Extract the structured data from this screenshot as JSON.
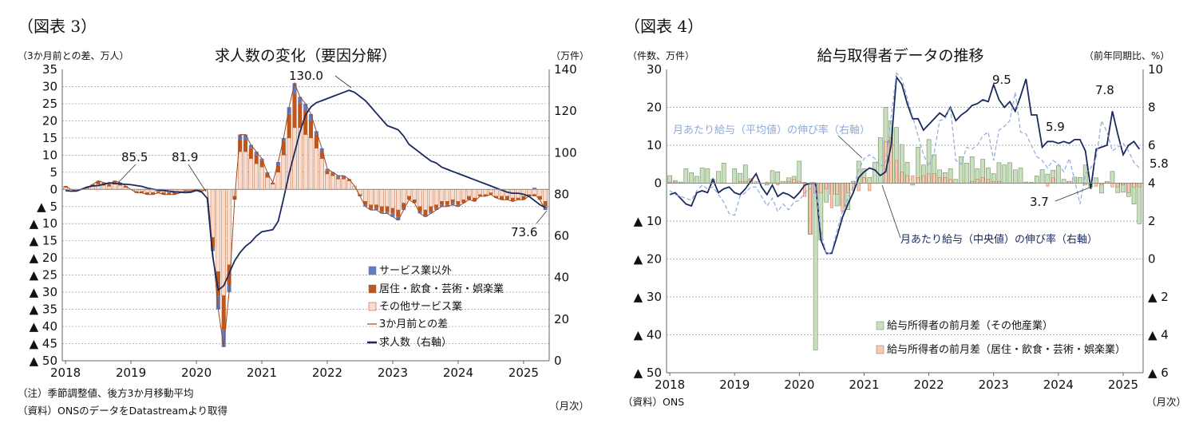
{
  "left": {
    "figure_label": "（図表 3）",
    "chart_data": {
      "type": "bar+line",
      "title": "求人数の変化（要因分解）",
      "ylabel_left": "（3か月前との差、万人）",
      "ylabel_right": "（万件）",
      "xlabel": "（月次）",
      "x_start": "2018-01",
      "x_end": "2025-05",
      "x_frequency": "monthly",
      "x_tick_labels": [
        "2018",
        "2019",
        "2020",
        "2021",
        "2022",
        "2023",
        "2024",
        "2025"
      ],
      "ylim_left": [
        -50,
        35
      ],
      "ylim_right": [
        0,
        140
      ],
      "y_ticks_left": [
        "35",
        "30",
        "25",
        "20",
        "15",
        "10",
        "5",
        "0",
        "▲ 5",
        "▲ 10",
        "▲ 15",
        "▲ 20",
        "▲ 25",
        "▲ 30",
        "▲ 35",
        "▲ 40",
        "▲ 45",
        "▲ 50"
      ],
      "y_ticks_right": [
        "140",
        "120",
        "100",
        "80",
        "60",
        "40",
        "20",
        "0"
      ],
      "grid": true,
      "legend_position": "bottom-right",
      "series": [
        {
          "name": "サービス業以外",
          "kind": "stacked-bar",
          "color": "#5b7fc4",
          "values": [
            0.1,
            0,
            0,
            0,
            0,
            0.1,
            0.2,
            0.2,
            0.1,
            0.2,
            0.2,
            0.1,
            0,
            -0.1,
            -0.1,
            -0.1,
            -0.1,
            -0.1,
            -0.1,
            -0.1,
            -0.1,
            -0.1,
            0,
            0,
            0,
            0,
            0,
            -1,
            -4,
            -5,
            -2,
            0,
            1.5,
            1.5,
            1,
            1,
            0.5,
            0.5,
            0,
            1,
            1,
            2,
            3,
            2,
            2,
            2,
            1,
            1,
            0.5,
            0.5,
            0.5,
            0.5,
            0,
            0,
            0,
            -0.5,
            -0.5,
            -0.5,
            -0.5,
            -0.5,
            -1,
            -1,
            -0.5,
            0,
            0,
            -0.5,
            -0.5,
            -0.5,
            -0.5,
            -0.5,
            -0.5,
            -0.5,
            -0.5,
            0,
            0,
            0,
            0,
            0,
            0,
            0,
            0,
            0,
            0,
            0,
            0,
            0,
            0.5,
            0,
            -1
          ]
        },
        {
          "name": "居住・飲食・芸術・娯楽業",
          "kind": "stacked-bar",
          "color": "#c0561c",
          "values": [
            0.3,
            0,
            -0.2,
            0,
            0.2,
            0.5,
            0.8,
            0.6,
            0.5,
            0.8,
            0.6,
            0.3,
            0,
            -0.3,
            -0.3,
            -0.5,
            -0.5,
            -0.3,
            -0.5,
            -0.5,
            -0.5,
            -0.3,
            -0.2,
            -0.2,
            0,
            -0.2,
            0,
            -3,
            -7,
            -10,
            -6,
            -1,
            3.5,
            3.5,
            3,
            2.5,
            2,
            1,
            0.5,
            2,
            4,
            7,
            10,
            7,
            7,
            5,
            4,
            2,
            1,
            0.5,
            0.5,
            0.5,
            0.5,
            0,
            -0.5,
            -1,
            -1,
            -1,
            -1.5,
            -1.5,
            -1.5,
            -2,
            -1.5,
            -1,
            -1,
            -1.5,
            -1.5,
            -1.5,
            -1,
            -1,
            -1,
            -1,
            -1,
            -1,
            -1,
            -1,
            -0.5,
            -0.5,
            -0.5,
            -0.5,
            -1,
            -1,
            -1,
            -0.5,
            -1,
            -0.5,
            -0.5,
            -1,
            -1.5
          ]
        },
        {
          "name": "その他サービス業",
          "kind": "stacked-bar",
          "color": "#fbdccb",
          "values": [
            0.6,
            0,
            -0.3,
            0,
            0.3,
            0.9,
            1.5,
            1.2,
            0.9,
            1.5,
            1.2,
            0.6,
            0,
            -0.6,
            -0.6,
            -0.9,
            -0.9,
            -0.6,
            -0.9,
            -0.9,
            -0.9,
            -0.6,
            -0.3,
            -0.3,
            0,
            -0.3,
            0,
            -14,
            -24,
            -31,
            -22,
            -2,
            11,
            11,
            9,
            7.5,
            6.5,
            3.5,
            1.5,
            5,
            10,
            15,
            18,
            18,
            16,
            15,
            12,
            9,
            4.5,
            4,
            3,
            3,
            2.5,
            1,
            -1.5,
            -3.5,
            -4.5,
            -4.5,
            -5,
            -5,
            -5.5,
            -6,
            -4,
            -2,
            -3,
            -5,
            -6,
            -5,
            -4.5,
            -3.5,
            -3.5,
            -3,
            -3.5,
            -3,
            -2,
            -2.5,
            -1.5,
            -1.5,
            -1,
            -2,
            -2,
            -2,
            -2.5,
            -2.5,
            -2,
            -1.5,
            -1.5,
            -2,
            -3.5
          ]
        },
        {
          "name": "3か月前との差",
          "kind": "line",
          "axis": "left",
          "color": "#a0461c",
          "values": [
            1,
            0,
            -0.5,
            0,
            0.5,
            1.5,
            2.5,
            2,
            1.5,
            2.5,
            2,
            1,
            0,
            -1,
            -1,
            -1.5,
            -1.5,
            -1,
            -1.5,
            -1.5,
            -1.5,
            -1,
            -0.5,
            -0.5,
            0,
            -0.5,
            0,
            -18,
            -35,
            -46,
            -30,
            -3,
            16,
            16,
            13,
            11,
            9,
            5,
            2,
            8,
            15,
            24,
            31,
            27,
            25,
            22,
            17,
            12,
            6,
            5,
            4,
            4,
            3,
            1,
            -2,
            -5,
            -6,
            -6,
            -7,
            -7,
            -8,
            -9,
            -6,
            -3,
            -4,
            -7,
            -8,
            -7,
            -6,
            -5,
            -5,
            -4.5,
            -5,
            -4,
            -3,
            -3.5,
            -2,
            -2,
            -1.5,
            -2.5,
            -3,
            -3,
            -3.5,
            -3,
            -3,
            -2,
            -1.5,
            -3,
            -6
          ]
        },
        {
          "name": "求人数（右軸）",
          "kind": "line",
          "axis": "right",
          "color": "#1a2a5e",
          "values": [
            81.8,
            81.5,
            81.6,
            82.5,
            83.5,
            84,
            84.2,
            84.8,
            85.5,
            85.2,
            85,
            84.8,
            84.6,
            84.2,
            83.8,
            83,
            82.5,
            82,
            81.8,
            81.5,
            81.2,
            81,
            80.8,
            81,
            81.9,
            81,
            78,
            50,
            34,
            36,
            42,
            48,
            52,
            55,
            57,
            60,
            62,
            62.5,
            63,
            67,
            78,
            90,
            100,
            110,
            118,
            122,
            124,
            125,
            126,
            127,
            128,
            129,
            130,
            129,
            127,
            125,
            122,
            119,
            116,
            113,
            112,
            111,
            108,
            104,
            102,
            100,
            98,
            96,
            95,
            93,
            92,
            91,
            90,
            89,
            88,
            87,
            86,
            85,
            84,
            83,
            82,
            81,
            80.5,
            80.5,
            80,
            79,
            77,
            75,
            73.6
          ]
        }
      ],
      "annotations": [
        "85.5",
        "81.9",
        "130.0",
        "73.6"
      ]
    },
    "notes": [
      "（注）季節調整値、後方3か月移動平均",
      "（資料）ONSのデータをDatastreamより取得"
    ]
  },
  "right": {
    "figure_label": "（図表 4）",
    "chart_data": {
      "type": "bar+line",
      "title": "給与取得者データの推移",
      "ylabel_left": "（件数、万件）",
      "ylabel_right": "（前年同期比、%）",
      "xlabel": "（月次）",
      "x_start": "2018-01",
      "x_end": "2025-04",
      "x_frequency": "monthly",
      "x_tick_labels": [
        "2018",
        "2019",
        "2020",
        "2021",
        "2022",
        "2023",
        "2024",
        "2025"
      ],
      "ylim_left": [
        -50,
        30
      ],
      "ylim_right": [
        -6,
        10
      ],
      "y_ticks_left": [
        "30",
        "20",
        "10",
        "0",
        "▲ 10",
        "▲ 20",
        "▲ 30",
        "▲ 40",
        "▲ 50"
      ],
      "y_ticks_right": [
        "10",
        "8",
        "6",
        "4",
        "2",
        "0",
        "▲ 2",
        "▲ 4",
        "▲ 6"
      ],
      "grid": true,
      "legend_position": "bottom-right",
      "series": [
        {
          "name": "給与所得者の前月差（その他産業）",
          "kind": "bar",
          "color": "#c8e0bd",
          "values": [
            2,
            0.7,
            0.3,
            3.8,
            2.8,
            1.8,
            4,
            3.8,
            1,
            3.1,
            5.3,
            0,
            3.8,
            2.6,
            4.8,
            1.2,
            0,
            0,
            -0.5,
            3.3,
            3,
            0.5,
            1.4,
            1.8,
            5.8,
            0.2,
            -13.5,
            -44,
            -15,
            -5,
            -3,
            -6,
            -6,
            -7,
            0.5,
            5.8,
            3.8,
            1.5,
            5.5,
            12,
            20,
            16.5,
            14.7,
            10.2,
            5.5,
            -0.5,
            9.5,
            4.8,
            11.5,
            7.5,
            3.5,
            2.8,
            3.8,
            1,
            7,
            5.3,
            7,
            3.8,
            6.3,
            4,
            2.5,
            5.4,
            4.8,
            5.4,
            3.5,
            4,
            0.3,
            0.2,
            1.9,
            3.6,
            2.4,
            3.4,
            4.6,
            1,
            0.5,
            1.6,
            1.5,
            4.8,
            -1,
            1.4,
            -2.6,
            0.4,
            3.1,
            -2.5,
            -2.4,
            -3.5,
            -5.5,
            -10.7
          ]
        },
        {
          "name": "給与所得者の前月差（居住・飲食・芸術・娯楽業）",
          "kind": "bar",
          "color": "#f9c9b0",
          "values": [
            0.3,
            0.3,
            0,
            0,
            0,
            0,
            0,
            0,
            0,
            0,
            0,
            0,
            0,
            0.5,
            0.5,
            1.2,
            0.5,
            0,
            0.3,
            0,
            -0.5,
            0,
            0.5,
            1,
            0.5,
            -3.5,
            -13.5,
            -2.7,
            -2.5,
            -1.5,
            -6.5,
            -3,
            -7.5,
            -2.5,
            -2,
            -2,
            1.5,
            -2,
            0,
            0,
            11,
            12,
            6,
            3,
            2,
            2,
            1.5,
            2,
            2.5,
            2.5,
            1.5,
            1.5,
            1,
            0,
            0,
            0,
            0.5,
            1,
            1.5,
            1,
            0.5,
            0.5,
            0,
            0,
            0,
            0,
            0,
            0,
            0,
            0,
            -0.8,
            1.4,
            0,
            0,
            0.5,
            0,
            0,
            -0.5,
            0,
            -0.8,
            -0.5,
            0.5,
            -1,
            -1,
            -0.5,
            -2.5,
            -1,
            -1
          ]
        },
        {
          "name": "月あたり給与（中央値）の伸び率（右軸）",
          "kind": "line",
          "axis": "right",
          "color": "#1a2a5e",
          "values": [
            3.4,
            3.5,
            3.2,
            2.9,
            2.8,
            3.5,
            3.6,
            3.5,
            4.2,
            3.5,
            3.7,
            3.8,
            3.5,
            3.4,
            3.7,
            4.1,
            4.5,
            3.8,
            3.4,
            3.9,
            3.3,
            3.5,
            3.4,
            3.2,
            3.5,
            3.9,
            4,
            4,
            1,
            0.3,
            0.3,
            1.2,
            2.2,
            2.9,
            3.5,
            4.3,
            4.6,
            4.8,
            4.7,
            4.4,
            4.6,
            6,
            9.6,
            9.2,
            8.2,
            7.4,
            7.4,
            6.8,
            7.1,
            7.4,
            7.7,
            7.5,
            8,
            7.3,
            7.6,
            7.8,
            8.1,
            8.2,
            8.4,
            8.3,
            9.2,
            8.4,
            8,
            8.3,
            7.8,
            8.6,
            9.5,
            7.6,
            7.6,
            5.9,
            6.2,
            6.2,
            6.1,
            6.2,
            6.1,
            6.3,
            6.3,
            5.7,
            3.7,
            5.8,
            5.9,
            6,
            7.8,
            6.6,
            5.5,
            6,
            6.2,
            5.8
          ]
        },
        {
          "name": "月あたり給与（平均値）の伸び率（右軸）",
          "kind": "dashed-line",
          "axis": "right",
          "color": "#8eaadb",
          "values": [
            3.6,
            3.4,
            3.3,
            3.2,
            3.1,
            3.6,
            3.9,
            3.7,
            3.8,
            3.4,
            3,
            2.4,
            2.3,
            3.3,
            3.5,
            3.8,
            3.8,
            3.3,
            2.8,
            3.2,
            2.5,
            2.9,
            2.6,
            3,
            3.1,
            3.5,
            3.7,
            3.8,
            1.5,
            0.2,
            0.4,
            1.5,
            2.5,
            3.2,
            3.8,
            4.7,
            5.3,
            5.5,
            5.3,
            4.9,
            5,
            7.5,
            9.8,
            9.5,
            8.5,
            7.5,
            6.5,
            5.5,
            4.9,
            5.6,
            7.3,
            7.4,
            8,
            5.2,
            5,
            5.9,
            5.8,
            6,
            6.5,
            6.7,
            5.2,
            6.8,
            7,
            7.3,
            8.8,
            6.7,
            6.6,
            6,
            5.4,
            5.2,
            4.8,
            5.2,
            5,
            4.6,
            5.3,
            4.2,
            2.9,
            4.5,
            4.8,
            5.3,
            7.3,
            6.7,
            5.7,
            5.9,
            6.1,
            5.7,
            5.1,
            4.8
          ]
        }
      ],
      "annotations": [
        "9.5",
        "5.9",
        "7.8",
        "3.7",
        "5.8"
      ]
    },
    "notes": [
      "（資料）ONS"
    ]
  }
}
